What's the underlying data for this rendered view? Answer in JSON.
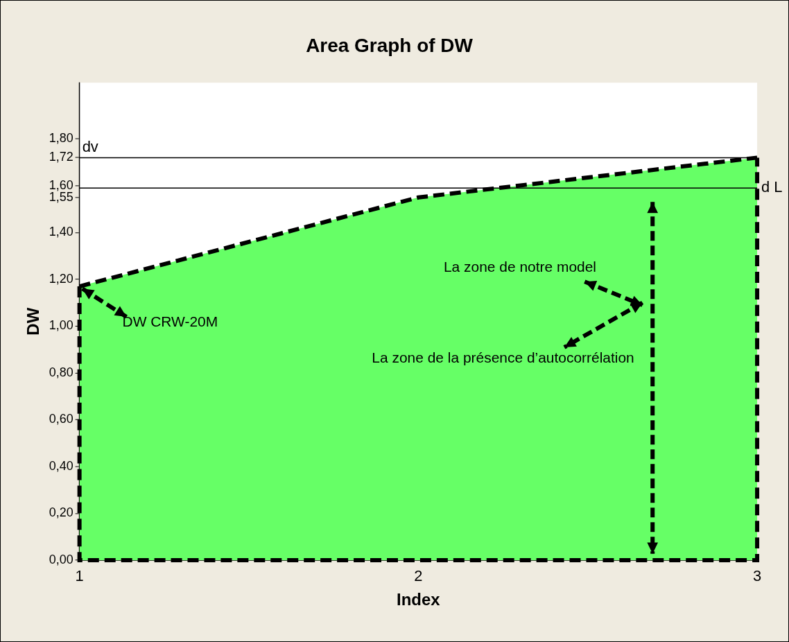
{
  "chart_data": {
    "type": "area",
    "title": "Area Graph of DW",
    "xlabel": "Index",
    "ylabel": "DW",
    "x": [
      1,
      2,
      3
    ],
    "series": [
      {
        "color": "#66ff66",
        "values": [
          1.17,
          1.55,
          1.72
        ]
      }
    ],
    "xlim": [
      1,
      3
    ],
    "xticks": [
      1,
      2,
      3
    ],
    "ylim": [
      0,
      2.04
    ],
    "yticks": [
      {
        "value": 0,
        "label": "0,00"
      },
      {
        "value": 0.2,
        "label": "0,20"
      },
      {
        "value": 0.4,
        "label": "0,40"
      },
      {
        "value": 0.6,
        "label": "0,60"
      },
      {
        "value": 0.8,
        "label": "0,80"
      },
      {
        "value": 1,
        "label": "1,00"
      },
      {
        "value": 1.2,
        "label": "1,20"
      },
      {
        "value": 1.4,
        "label": "1,40"
      },
      {
        "value": 1.55,
        "label": "1,55"
      },
      {
        "value": 1.6,
        "label": "1,60"
      },
      {
        "value": 1.72,
        "label": "1,72"
      },
      {
        "value": 1.8,
        "label": "1,80"
      }
    ],
    "ref_lines": [
      {
        "axis": "y",
        "value": 1.72,
        "label": "dv",
        "color": "#000000"
      },
      {
        "axis": "y",
        "value": 1.59,
        "label": "d L",
        "color": "#000000"
      }
    ],
    "annotations": [
      {
        "text": "DW CRW-20M",
        "x": 1,
        "y": 1.17
      },
      "La zone de notre model",
      "La zone de la présence d’autocorrélation"
    ],
    "line_style": "dashed",
    "marker": "none",
    "grid": false,
    "legend": false
  }
}
